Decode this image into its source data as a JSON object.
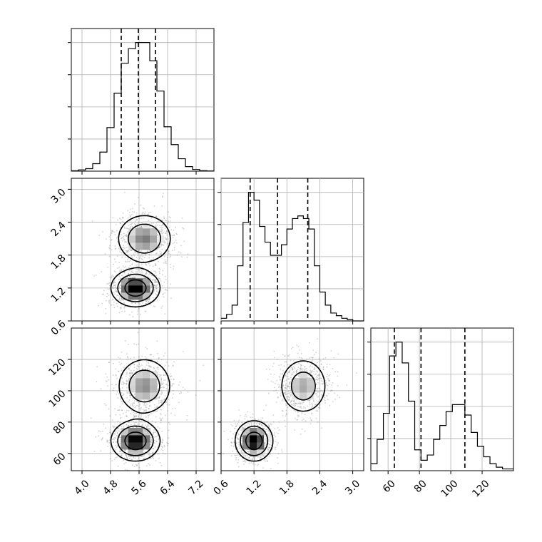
{
  "chart_data": {
    "type": "corner",
    "parameters": [
      "",
      "",
      ""
    ],
    "colors": {
      "line": "#000000",
      "grid": "#b0b0b0",
      "scatter": "#7a7a7a",
      "density_max": "#000000",
      "background": "#ffffff"
    },
    "axes": {
      "p0": {
        "range": [
          3.7,
          7.7
        ],
        "ticks": [
          4.0,
          4.8,
          5.6,
          6.4,
          7.2
        ],
        "tick_labels": [
          "4.0",
          "4.8",
          "5.6",
          "6.4",
          "7.2"
        ]
      },
      "p1": {
        "range": [
          0.6,
          3.2
        ],
        "ticks": [
          0.6,
          1.2,
          1.8,
          2.4,
          3.0
        ],
        "tick_labels": [
          "0.6",
          "1.2",
          "1.8",
          "2.4",
          "3.0"
        ]
      },
      "p2": {
        "range": [
          49,
          140
        ],
        "ticks": [
          60,
          80,
          100,
          120
        ],
        "tick_labels": [
          "60",
          "80",
          "100",
          "120"
        ]
      }
    },
    "grid": true,
    "histograms": {
      "p0": {
        "edges": [
          3.7,
          3.9,
          4.1,
          4.3,
          4.5,
          4.7,
          4.9,
          5.1,
          5.3,
          5.5,
          5.7,
          5.9,
          6.1,
          6.3,
          6.5,
          6.7,
          6.9,
          7.1,
          7.3,
          7.5,
          7.7
        ],
        "counts": [
          10,
          30,
          60,
          180,
          460,
          1050,
          1880,
          2600,
          2950,
          3100,
          3100,
          2660,
          1930,
          1070,
          640,
          300,
          110,
          40,
          12,
          5
        ],
        "quantiles": [
          5.1,
          5.58,
          6.06
        ]
      },
      "p1": {
        "edges": [
          0.6,
          0.7,
          0.8,
          0.9,
          1.0,
          1.1,
          1.2,
          1.3,
          1.4,
          1.5,
          1.6,
          1.7,
          1.8,
          1.9,
          2.0,
          2.1,
          2.2,
          2.3,
          2.4,
          2.5,
          2.6,
          2.7,
          2.8,
          2.9,
          3.0,
          3.1,
          3.2
        ],
        "counts": [
          2,
          5,
          12,
          42,
          75,
          98,
          92,
          72,
          60,
          50,
          50,
          58,
          70,
          78,
          80,
          78,
          70,
          42,
          22,
          12,
          6,
          4,
          2,
          1,
          0,
          0
        ],
        "quantiles": [
          1.13,
          1.63,
          2.18
        ]
      },
      "p2": {
        "edges": [
          49,
          53,
          57,
          61,
          65,
          69,
          73,
          77,
          81,
          85,
          89,
          93,
          97,
          101,
          105,
          109,
          113,
          117,
          121,
          125,
          129,
          133,
          137,
          140
        ],
        "counts": [
          4,
          18,
          33,
          66,
          74,
          62,
          40,
          12,
          6,
          9,
          18,
          26,
          34,
          38,
          38,
          32,
          22,
          14,
          8,
          4,
          2,
          1,
          1
        ],
        "quantiles": [
          64,
          81,
          109
        ]
      }
    },
    "clusters": [
      {
        "mean": [
          5.5,
          1.2,
          68
        ],
        "sd": [
          0.32,
          0.16,
          6
        ],
        "weight": 0.5
      },
      {
        "mean": [
          5.75,
          2.1,
          103
        ],
        "sd": [
          0.38,
          0.22,
          9
        ],
        "weight": 0.5
      }
    ],
    "contour_fractions": [
      0.35,
      0.7,
      0.9
    ]
  }
}
